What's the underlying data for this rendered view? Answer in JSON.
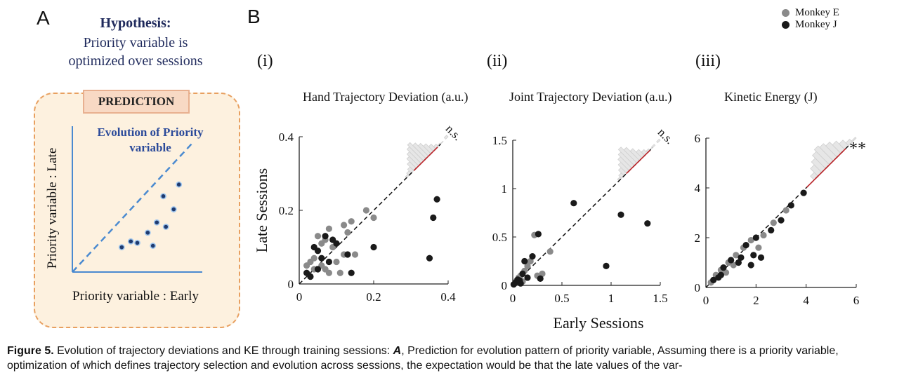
{
  "panel_a": {
    "letter": "A",
    "hypothesis_title": "Hypothesis:",
    "hypothesis_line1": "Priority variable is",
    "hypothesis_line2": "optimized over sessions",
    "prediction_label": "PREDICTION",
    "inset_title_line1": "Evolution of Priority",
    "inset_title_line2": "variable",
    "ylabel": "Priority variable : Late",
    "xlabel": "Priority variable : Early",
    "points": [
      [
        0.38,
        0.17
      ],
      [
        0.45,
        0.21
      ],
      [
        0.5,
        0.2
      ],
      [
        0.62,
        0.18
      ],
      [
        0.58,
        0.27
      ],
      [
        0.65,
        0.34
      ],
      [
        0.72,
        0.31
      ],
      [
        0.78,
        0.43
      ],
      [
        0.7,
        0.52
      ],
      [
        0.82,
        0.6
      ]
    ]
  },
  "panel_b": {
    "letter": "B",
    "xlabel": "Early Sessions",
    "ylabel": "Late Sessions",
    "legend": [
      {
        "name": "Monkey E",
        "color": "#8a8a8a"
      },
      {
        "name": "Monkey J",
        "color": "#1a1a1a"
      }
    ]
  },
  "chart_data": [
    {
      "type": "scatter",
      "panel": "(i)",
      "title": "Hand Trajectory Deviation (a.u.)",
      "significance": "n.s.",
      "xlim": [
        0,
        0.4
      ],
      "ylim": [
        0,
        0.4
      ],
      "xticks": [
        "0",
        "0.2",
        "0.4"
      ],
      "yticks": [
        "0",
        "0.2",
        "0.4"
      ],
      "xtick_values": [
        0,
        0.2,
        0.4
      ],
      "ytick_values": [
        0,
        0.2,
        0.4
      ],
      "series": [
        {
          "name": "Monkey E",
          "points": [
            [
              0.02,
              0.05
            ],
            [
              0.03,
              0.06
            ],
            [
              0.04,
              0.07
            ],
            [
              0.06,
              0.05
            ],
            [
              0.07,
              0.04
            ],
            [
              0.08,
              0.03
            ],
            [
              0.09,
              0.1
            ],
            [
              0.1,
              0.06
            ],
            [
              0.12,
              0.08
            ],
            [
              0.06,
              0.11
            ],
            [
              0.05,
              0.13
            ],
            [
              0.13,
              0.14
            ],
            [
              0.12,
              0.16
            ],
            [
              0.14,
              0.17
            ],
            [
              0.18,
              0.2
            ],
            [
              0.2,
              0.18
            ],
            [
              0.08,
              0.15
            ],
            [
              0.07,
              0.12
            ],
            [
              0.15,
              0.08
            ],
            [
              0.11,
              0.03
            ],
            [
              0.03,
              0.02
            ],
            [
              0.04,
              0.04
            ]
          ]
        },
        {
          "name": "Monkey J",
          "points": [
            [
              0.02,
              0.03
            ],
            [
              0.03,
              0.02
            ],
            [
              0.04,
              0.1
            ],
            [
              0.05,
              0.09
            ],
            [
              0.06,
              0.07
            ],
            [
              0.07,
              0.13
            ],
            [
              0.09,
              0.12
            ],
            [
              0.1,
              0.11
            ],
            [
              0.13,
              0.08
            ],
            [
              0.14,
              0.03
            ],
            [
              0.2,
              0.1
            ],
            [
              0.35,
              0.07
            ],
            [
              0.36,
              0.18
            ],
            [
              0.37,
              0.23
            ],
            [
              0.08,
              0.06
            ],
            [
              0.05,
              0.04
            ]
          ]
        }
      ],
      "histogram": [
        0.06,
        0.12,
        0.2,
        0.35,
        0.5,
        0.62,
        0.75,
        0.85,
        0.7,
        0.55,
        0.4,
        0.25,
        0.12,
        0.05,
        0.02,
        0,
        0.08
      ]
    },
    {
      "type": "scatter",
      "panel": "(ii)",
      "title": "Joint Trajectory Deviation (a.u.)",
      "significance": "n.s.",
      "xlim": [
        0,
        1.5
      ],
      "ylim": [
        0,
        1.5
      ],
      "xticks": [
        "0",
        "0.5",
        "1",
        "1.5"
      ],
      "yticks": [
        "0",
        "0.5",
        "1",
        "1.5"
      ],
      "xtick_values": [
        0,
        0.5,
        1,
        1.5
      ],
      "ytick_values": [
        0,
        0.5,
        1,
        1.5
      ],
      "series": [
        {
          "name": "Monkey E",
          "points": [
            [
              0.02,
              0.02
            ],
            [
              0.04,
              0.05
            ],
            [
              0.06,
              0.08
            ],
            [
              0.08,
              0.1
            ],
            [
              0.12,
              0.15
            ],
            [
              0.15,
              0.2
            ],
            [
              0.18,
              0.25
            ],
            [
              0.22,
              0.52
            ],
            [
              0.25,
              0.1
            ],
            [
              0.3,
              0.12
            ],
            [
              0.38,
              0.35
            ],
            [
              0.1,
              0.04
            ],
            [
              0.05,
              0.03
            ]
          ]
        },
        {
          "name": "Monkey J",
          "points": [
            [
              0.01,
              0.01
            ],
            [
              0.03,
              0.03
            ],
            [
              0.05,
              0.06
            ],
            [
              0.07,
              0.05
            ],
            [
              0.1,
              0.12
            ],
            [
              0.12,
              0.25
            ],
            [
              0.15,
              0.08
            ],
            [
              0.2,
              0.3
            ],
            [
              0.26,
              0.53
            ],
            [
              0.28,
              0.07
            ],
            [
              0.62,
              0.85
            ],
            [
              0.95,
              0.2
            ],
            [
              1.1,
              0.73
            ],
            [
              1.37,
              0.64
            ],
            [
              0.08,
              0.02
            ]
          ]
        }
      ],
      "histogram": [
        0.08,
        0.15,
        0.3,
        0.45,
        0.6,
        0.72,
        0.85,
        0.7,
        0.5,
        0.32,
        0.18,
        0.08,
        0.03,
        0.05,
        0,
        0.06
      ]
    },
    {
      "type": "scatter",
      "panel": "(iii)",
      "title": "Kinetic Energy (J)",
      "significance": "**",
      "xlim": [
        0,
        6
      ],
      "ylim": [
        0,
        6
      ],
      "xticks": [
        "0",
        "2",
        "4",
        "6"
      ],
      "yticks": [
        "0",
        "2",
        "4",
        "6"
      ],
      "xtick_values": [
        0,
        2,
        4,
        6
      ],
      "ytick_values": [
        0,
        2,
        4,
        6
      ],
      "series": [
        {
          "name": "Monkey E",
          "points": [
            [
              0.2,
              0.2
            ],
            [
              0.4,
              0.5
            ],
            [
              0.6,
              0.7
            ],
            [
              0.9,
              1.0
            ],
            [
              1.2,
              1.3
            ],
            [
              1.5,
              1.6
            ],
            [
              1.8,
              1.9
            ],
            [
              2.1,
              1.6
            ],
            [
              2.3,
              2.1
            ],
            [
              2.7,
              2.6
            ],
            [
              3.2,
              3.1
            ],
            [
              0.8,
              0.6
            ],
            [
              1.1,
              0.9
            ]
          ]
        },
        {
          "name": "Monkey J",
          "points": [
            [
              0.3,
              0.3
            ],
            [
              0.5,
              0.4
            ],
            [
              0.7,
              0.8
            ],
            [
              1.0,
              1.1
            ],
            [
              1.3,
              1.0
            ],
            [
              1.6,
              1.7
            ],
            [
              1.9,
              1.3
            ],
            [
              2.0,
              2.0
            ],
            [
              2.2,
              1.2
            ],
            [
              2.6,
              2.3
            ],
            [
              3.0,
              2.7
            ],
            [
              3.4,
              3.3
            ],
            [
              3.9,
              3.8
            ],
            [
              1.4,
              1.2
            ],
            [
              0.6,
              0.5
            ],
            [
              1.8,
              0.9
            ]
          ]
        }
      ],
      "histogram": [
        0.2,
        0.4,
        0.55,
        0.7,
        0.8,
        0.72,
        0.6,
        0.45,
        0.3,
        0.15,
        0.05
      ]
    }
  ],
  "caption": {
    "figure_label": "Figure 5.",
    "text_part1": " Evolution of trajectory deviations and KE through training sessions: ",
    "panel_ref": "A",
    "text_part2": ", Prediction for evolution pattern of priority variable, Assuming there is a priority variable, optimization of which defines trajectory selection and evolution across sessions, the expectation would be that the late values of the var-"
  }
}
